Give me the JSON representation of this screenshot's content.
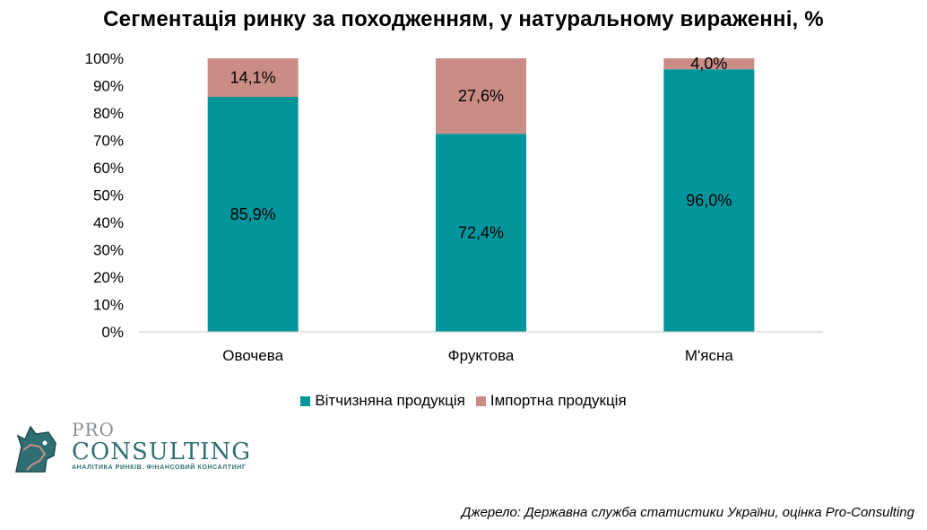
{
  "chart_data": {
    "type": "bar",
    "stacked": true,
    "title": "Сегментація ринку за походженням, у натуральному вираженні, %",
    "categories": [
      "Овочева",
      "Фруктова",
      "М'ясна"
    ],
    "series": [
      {
        "name": "Вітчизняна продукція",
        "values": [
          85.9,
          72.4,
          96.0
        ],
        "labels": [
          "85,9%",
          "72,4%",
          "96,0%"
        ],
        "color": "#00959b"
      },
      {
        "name": "Імпортна продукція",
        "values": [
          14.1,
          27.6,
          4.0
        ],
        "labels": [
          "14,1%",
          "27,6%",
          "4,0%"
        ],
        "color": "#c98d86"
      }
    ],
    "ylim": [
      0,
      100
    ],
    "yticks": [
      "0%",
      "10%",
      "20%",
      "30%",
      "40%",
      "50%",
      "60%",
      "70%",
      "80%",
      "90%",
      "100%"
    ],
    "grid": false,
    "legend_position": "bottom"
  },
  "logo": {
    "pro": "PRO",
    "consulting": "CONSULTING",
    "tagline": "АНАЛІТИКА РИНКІВ. ФІНАНСОВИЙ КОНСАЛТИНГ",
    "icon": "horse-head-icon"
  },
  "source": "Джерело: Державна служба статистики України, оцінка Pro-Consulting"
}
